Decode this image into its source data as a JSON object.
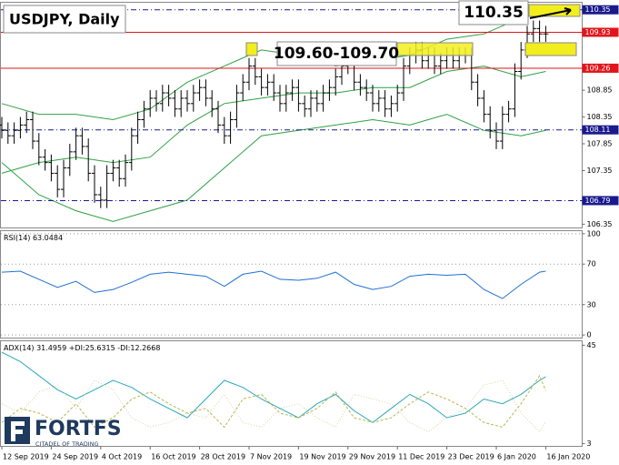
{
  "chart_data": [
    {
      "type": "ohlc",
      "title": "USDJPY, Daily",
      "ylim": [
        106.28,
        110.49
      ],
      "yticks": [
        106.35,
        107.35,
        107.85,
        108.35,
        108.85
      ],
      "annotations": [
        "110.35",
        "109.60-109.70"
      ],
      "color": "#000000",
      "categories": [
        "12 Sep 2019",
        null,
        null,
        null,
        null,
        null,
        null,
        null,
        "24 Sep 2019",
        null,
        null,
        null,
        null,
        null,
        null,
        null,
        "4 Oct 2019",
        null,
        null,
        null,
        null,
        null,
        null,
        null,
        "16 Oct 2019",
        null,
        null,
        null,
        null,
        null,
        null,
        null,
        "28 Oct 2019",
        null,
        null,
        null,
        null,
        null,
        null,
        null,
        "7 Nov 2019",
        null,
        null,
        null,
        null,
        null,
        null,
        null,
        "19 Nov 2019",
        null,
        null,
        null,
        null,
        null,
        null,
        null,
        "29 Nov 2019",
        null,
        null,
        null,
        null,
        null,
        null,
        null,
        "11 Dec 2019",
        null,
        null,
        null,
        null,
        null,
        null,
        null,
        "23 Dec 2019",
        null,
        null,
        null,
        null,
        null,
        null,
        null,
        "6 Jan 2020",
        null,
        null,
        null,
        null,
        null,
        null,
        null,
        "16 Jan 2020"
      ],
      "open": [
        108.2,
        108.1,
        108.0,
        108.1,
        108.2,
        108.3,
        107.9,
        107.6,
        107.5,
        107.3,
        107.0,
        107.4,
        107.7,
        108.0,
        107.8,
        107.3,
        106.9,
        106.8,
        107.3,
        107.4,
        107.2,
        107.5,
        108.0,
        108.3,
        108.5,
        108.7,
        108.6,
        108.8,
        108.7,
        108.5,
        108.7,
        108.6,
        108.8,
        108.9,
        108.7,
        108.5,
        108.2,
        108.0,
        108.3,
        108.8,
        109.0,
        109.3,
        109.1,
        108.9,
        109.0,
        108.8,
        108.6,
        108.8,
        108.9,
        108.6,
        108.5,
        108.7,
        108.6,
        108.8,
        108.9,
        109.1,
        109.3,
        109.5,
        109.0,
        108.9,
        108.8,
        108.6,
        108.7,
        108.5,
        108.6,
        108.8,
        109.3,
        109.5,
        109.6,
        109.4,
        109.5,
        109.3,
        109.4,
        109.5,
        109.4,
        109.5,
        109.5,
        109.0,
        108.7,
        108.4,
        108.1,
        107.9,
        108.4,
        108.5,
        109.2,
        109.6,
        109.9,
        110.0,
        109.9
      ],
      "high": [
        108.35,
        108.25,
        108.25,
        108.35,
        108.45,
        108.45,
        108.05,
        107.75,
        107.65,
        107.45,
        107.55,
        107.85,
        108.15,
        108.15,
        107.95,
        107.45,
        107.05,
        107.45,
        107.55,
        107.55,
        107.65,
        108.15,
        108.45,
        108.65,
        108.85,
        108.85,
        108.95,
        108.95,
        108.85,
        108.85,
        108.85,
        108.95,
        109.05,
        109.05,
        108.85,
        108.65,
        108.35,
        108.45,
        108.95,
        109.15,
        109.45,
        109.45,
        109.25,
        109.15,
        109.15,
        108.95,
        108.95,
        109.05,
        109.05,
        108.75,
        108.85,
        108.85,
        108.95,
        109.05,
        109.25,
        109.45,
        109.65,
        109.65,
        109.15,
        109.05,
        108.95,
        108.85,
        108.85,
        108.75,
        108.95,
        109.45,
        109.65,
        109.75,
        109.75,
        109.65,
        109.65,
        109.55,
        109.65,
        109.65,
        109.65,
        109.65,
        109.65,
        109.15,
        108.85,
        108.55,
        108.25,
        108.55,
        108.65,
        109.35,
        109.75,
        110.05,
        110.15,
        110.15,
        110.05
      ],
      "low": [
        107.95,
        107.85,
        107.85,
        107.95,
        108.05,
        107.75,
        107.45,
        107.35,
        107.15,
        106.85,
        106.85,
        107.25,
        107.55,
        107.65,
        107.15,
        106.75,
        106.65,
        106.65,
        107.15,
        107.05,
        107.05,
        107.35,
        107.85,
        108.15,
        108.35,
        108.45,
        108.45,
        108.55,
        108.35,
        108.35,
        108.45,
        108.45,
        108.65,
        108.55,
        108.35,
        108.05,
        107.85,
        107.85,
        108.15,
        108.65,
        108.85,
        108.95,
        108.75,
        108.75,
        108.65,
        108.45,
        108.45,
        108.65,
        108.45,
        108.35,
        108.35,
        108.45,
        108.45,
        108.65,
        108.75,
        108.95,
        109.15,
        108.85,
        108.75,
        108.65,
        108.45,
        108.45,
        108.35,
        108.35,
        108.45,
        108.65,
        109.15,
        109.35,
        109.25,
        109.25,
        109.15,
        109.15,
        109.25,
        109.25,
        109.25,
        109.35,
        108.85,
        108.55,
        108.25,
        107.95,
        107.75,
        107.75,
        108.25,
        108.35,
        109.05,
        109.45,
        109.75,
        109.75,
        109.75
      ],
      "close": [
        108.1,
        108.0,
        108.1,
        108.2,
        108.3,
        107.9,
        107.6,
        107.5,
        107.3,
        107.0,
        107.4,
        107.7,
        108.0,
        107.8,
        107.3,
        106.9,
        106.8,
        107.3,
        107.4,
        107.2,
        107.5,
        108.0,
        108.3,
        108.5,
        108.7,
        108.6,
        108.8,
        108.7,
        108.5,
        108.7,
        108.6,
        108.8,
        108.9,
        108.7,
        108.5,
        108.2,
        108.0,
        108.3,
        108.8,
        109.0,
        109.3,
        109.1,
        108.9,
        109.0,
        108.8,
        108.6,
        108.8,
        108.9,
        108.6,
        108.5,
        108.7,
        108.6,
        108.8,
        108.9,
        109.1,
        109.3,
        109.5,
        109.0,
        108.9,
        108.8,
        108.6,
        108.7,
        108.5,
        108.6,
        108.8,
        109.3,
        109.5,
        109.6,
        109.4,
        109.5,
        109.3,
        109.4,
        109.5,
        109.4,
        109.5,
        109.5,
        109.0,
        108.7,
        108.4,
        108.1,
        107.9,
        108.4,
        108.5,
        109.2,
        109.6,
        109.9,
        110.0,
        109.9,
        109.9
      ],
      "bands": {
        "color": "#2ea043",
        "x": [
          0,
          6,
          12,
          18,
          24,
          30,
          36,
          42,
          48,
          54,
          60,
          66,
          72,
          78,
          84,
          88
        ],
        "upper": [
          108.6,
          108.4,
          108.4,
          108.3,
          108.5,
          109.0,
          109.3,
          109.6,
          109.5,
          109.3,
          109.4,
          109.5,
          109.8,
          109.9,
          110.2,
          110.4
        ],
        "middle": [
          107.3,
          107.5,
          107.6,
          107.5,
          107.6,
          108.2,
          108.6,
          108.7,
          108.8,
          108.8,
          108.9,
          108.9,
          109.2,
          109.3,
          109.1,
          109.2
        ],
        "lower": [
          107.5,
          106.9,
          106.6,
          106.4,
          106.6,
          106.8,
          107.4,
          108.0,
          108.1,
          108.2,
          108.3,
          108.2,
          108.4,
          108.1,
          108.0,
          108.1
        ]
      },
      "levels": [
        {
          "value": 110.35,
          "color": "#1a1a8c",
          "style": "dashdot"
        },
        {
          "value": 109.93,
          "color": "#e0161b",
          "style": "solid"
        },
        {
          "value": 109.26,
          "color": "#e0161b",
          "style": "solid"
        },
        {
          "value": 108.11,
          "color": "#1a1a8c",
          "style": "dashdot"
        },
        {
          "value": 106.79,
          "color": "#1a1a8c",
          "style": "dashdot"
        }
      ]
    },
    {
      "type": "line",
      "label": "RSI(14) 63.0484",
      "ylim": [
        -3,
        103
      ],
      "yticks": [
        0,
        30,
        70,
        100
      ],
      "grid": true,
      "x": [
        0,
        3,
        6,
        9,
        12,
        15,
        18,
        21,
        24,
        27,
        30,
        33,
        36,
        39,
        42,
        45,
        48,
        51,
        54,
        57,
        60,
        63,
        66,
        69,
        72,
        75,
        78,
        81,
        84,
        87,
        88
      ],
      "series": [
        {
          "color": "#1f6fd1",
          "dash": "none",
          "values": [
            62,
            63,
            55,
            47,
            53,
            42,
            45,
            52,
            60,
            62,
            60,
            58,
            48,
            60,
            63,
            55,
            54,
            56,
            62,
            50,
            45,
            48,
            58,
            60,
            59,
            60,
            45,
            36,
            50,
            62,
            63
          ]
        }
      ]
    },
    {
      "type": "line",
      "label": "ADX(14) 31.4959 +DI:25.6315 -DI:12.2668",
      "ylim": [
        1.8,
        46.9
      ],
      "yticks": [
        3,
        45
      ],
      "grid": false,
      "x": [
        0,
        3,
        6,
        9,
        12,
        15,
        18,
        21,
        24,
        27,
        30,
        33,
        36,
        39,
        42,
        45,
        48,
        51,
        54,
        57,
        60,
        63,
        66,
        69,
        72,
        75,
        78,
        81,
        84,
        87,
        88
      ],
      "series": [
        {
          "color": "#2aa7b8",
          "dash": "none",
          "values": [
            42,
            38,
            32,
            26,
            22,
            26,
            30,
            27,
            22,
            18,
            14,
            22,
            30,
            27,
            22,
            18,
            14,
            20,
            24,
            17,
            12,
            18,
            24,
            20,
            14,
            16,
            22,
            20,
            24,
            30,
            31.5
          ]
        },
        {
          "color": "#b5b84a",
          "dash": "3 2",
          "values": [
            12,
            18,
            16,
            12,
            20,
            10,
            14,
            22,
            25,
            20,
            16,
            18,
            10,
            22,
            24,
            16,
            14,
            18,
            25,
            14,
            12,
            14,
            20,
            25,
            22,
            18,
            12,
            10,
            20,
            32,
            25.6
          ]
        },
        {
          "color": "#d8d2a8",
          "dash": "1 2",
          "values": [
            20,
            16,
            25,
            28,
            18,
            30,
            26,
            14,
            10,
            12,
            16,
            14,
            24,
            12,
            10,
            18,
            20,
            14,
            10,
            24,
            22,
            20,
            12,
            8,
            14,
            18,
            28,
            30,
            16,
            8,
            12.3
          ]
        }
      ]
    }
  ],
  "branding": {
    "name": "FORTFS",
    "tagline": "CITADEL OF TRADING"
  }
}
